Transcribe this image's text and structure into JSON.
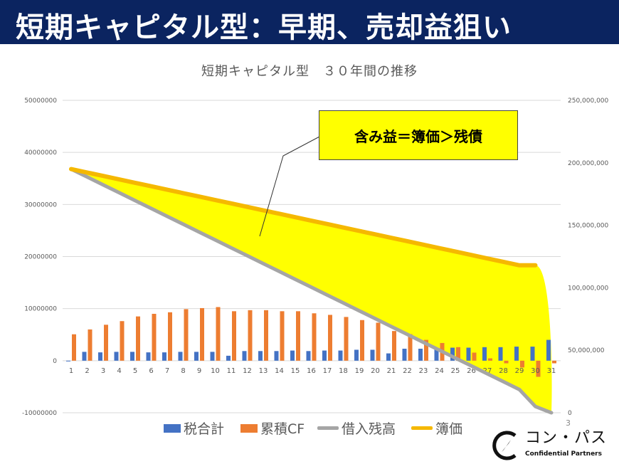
{
  "slide": {
    "title": "短期キャピタル型：早期、売却益狙い",
    "page_number": "3",
    "logo": {
      "name": "コン・パス",
      "sub": "Confidential Partners"
    }
  },
  "callout": {
    "text": "含み益＝簿価＞残債"
  },
  "colors": {
    "tax": "#4472c4",
    "cf": "#ed7d31",
    "loan": "#a5a5a5",
    "book": "#f5b800",
    "gain_fill": "#ffff00",
    "title_bg": "#0b2460"
  },
  "chart_data": {
    "type": "bar+line",
    "title": "短期キャピタル型　３０年間の推移",
    "categories": [
      1,
      2,
      3,
      4,
      5,
      6,
      7,
      8,
      9,
      10,
      11,
      12,
      13,
      14,
      15,
      16,
      17,
      18,
      19,
      20,
      21,
      22,
      23,
      24,
      25,
      26,
      27,
      28,
      29,
      30,
      31
    ],
    "left_axis": {
      "min": -10000000,
      "max": 50000000,
      "ticks": [
        "-10000000",
        "0",
        "10000000",
        "20000000",
        "30000000",
        "40000000",
        "50000000"
      ],
      "tick_values": [
        -10000000,
        0,
        10000000,
        20000000,
        30000000,
        40000000,
        50000000
      ]
    },
    "right_axis": {
      "min": 0,
      "max": 250000000,
      "ticks": [
        "0",
        "50,000,000",
        "100,000,000",
        "150,000,000",
        "200,000,000",
        "250,000,000"
      ],
      "tick_values": [
        0,
        50000000,
        100000000,
        150000000,
        200000000,
        250000000
      ]
    },
    "series": [
      {
        "name": "税合計",
        "type": "bar",
        "axis": "left",
        "values": [
          -100000,
          1700000,
          1600000,
          1700000,
          1700000,
          1600000,
          1600000,
          1700000,
          1700000,
          1700000,
          950000,
          1850000,
          1850000,
          1850000,
          1950000,
          1850000,
          1950000,
          1950000,
          2100000,
          2100000,
          1400000,
          2300000,
          2300000,
          2300000,
          2500000,
          2500000,
          2600000,
          2600000,
          2700000,
          2700000,
          4000000
        ]
      },
      {
        "name": "累積CF",
        "type": "bar",
        "axis": "left",
        "values": [
          5070000,
          6000000,
          6900000,
          7600000,
          8500000,
          9000000,
          9300000,
          9900000,
          10100000,
          10300000,
          9500000,
          9700000,
          9700000,
          9500000,
          9500000,
          9100000,
          8800000,
          8400000,
          7800000,
          7300000,
          5700000,
          5100000,
          4000000,
          3400000,
          2600000,
          1550000,
          450000,
          -500000,
          -1300000,
          -3100000,
          -500000
        ]
      },
      {
        "name": "借入残高",
        "type": "line",
        "axis": "right",
        "values": [
          195000000,
          188700000,
          182400000,
          176100000,
          169800000,
          163500000,
          157200000,
          150900000,
          144600000,
          138300000,
          132000000,
          125700000,
          119400000,
          113100000,
          106800000,
          100500000,
          94200000,
          87900000,
          81600000,
          75300000,
          69000000,
          62700000,
          56400000,
          50100000,
          43800000,
          37500000,
          31200000,
          24900000,
          18600000,
          5000000,
          0
        ]
      },
      {
        "name": "簿価",
        "type": "line",
        "axis": "right",
        "values": [
          195000000,
          192250000,
          189500000,
          186750000,
          184000000,
          181250000,
          178500000,
          175750000,
          173000000,
          170250000,
          167500000,
          164750000,
          162000000,
          159250000,
          156500000,
          153750000,
          151000000,
          148250000,
          145500000,
          142750000,
          140000000,
          137250000,
          134500000,
          131750000,
          129000000,
          126250000,
          123500000,
          120750000,
          118000000,
          118000000,
          0
        ]
      }
    ],
    "legend_position": "bottom",
    "grid": true
  }
}
